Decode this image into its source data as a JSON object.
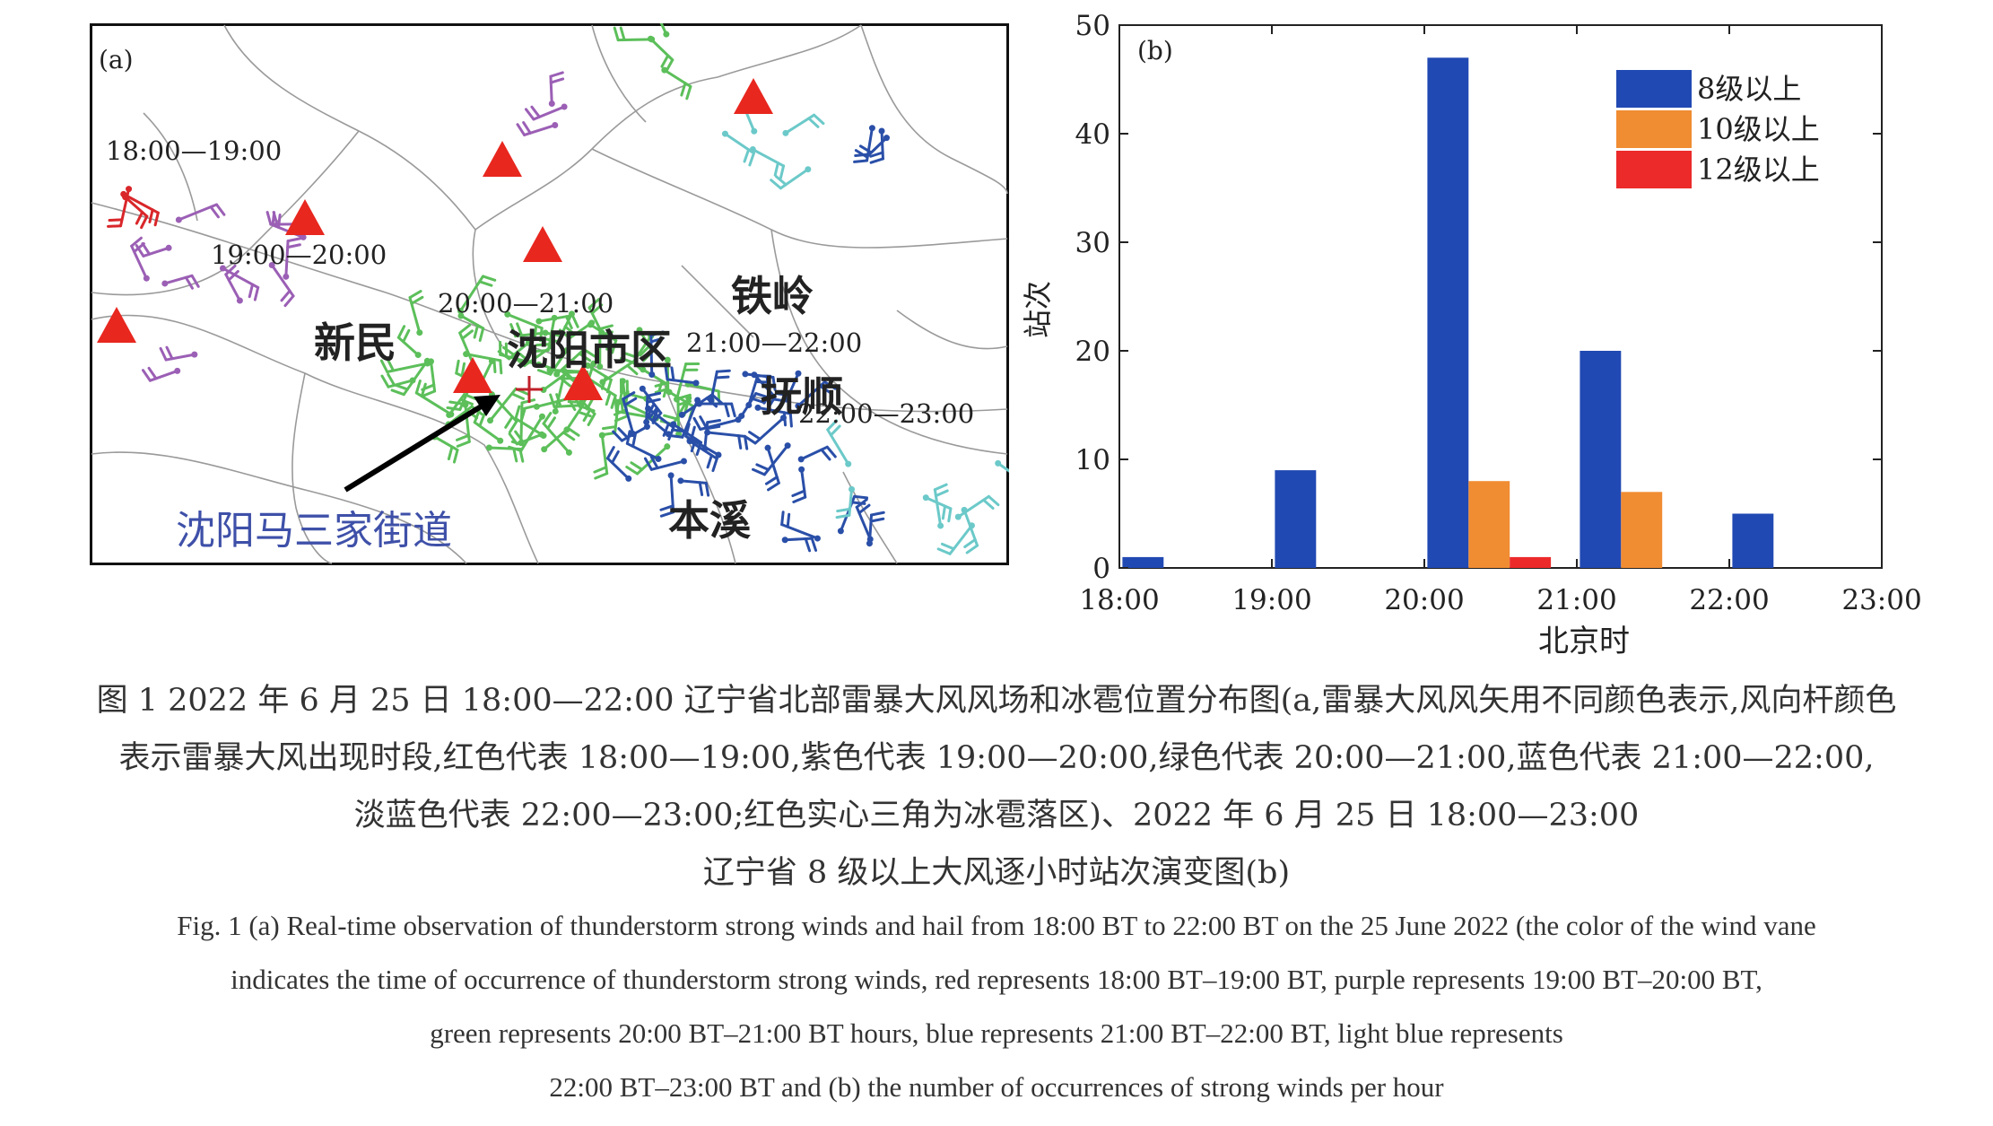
{
  "panel_a": {
    "label": "(a)",
    "periods": [
      "18:00—19:00",
      "19:00—20:00",
      "20:00—21:00",
      "21:00—22:00",
      "22:00—23:00"
    ],
    "places": [
      "新民",
      "铁岭",
      "沈阳市区",
      "抚顺",
      "本溪"
    ],
    "annotation": "沈阳马三家街道",
    "colors": {
      "red": "#d9262a",
      "purple": "#9b5fb5",
      "green": "#5cbf5a",
      "blue": "#2a4fa8",
      "lightblue": "#6cc9c9",
      "hail": "#e8271f"
    }
  },
  "chart_data": {
    "type": "bar",
    "label": "(b)",
    "xlabel": "北京时",
    "ylabel": "站次",
    "xlim": [
      18,
      23
    ],
    "ylim": [
      0,
      50
    ],
    "xticks": [
      "18:00",
      "19:00",
      "20:00",
      "21:00",
      "22:00",
      "23:00"
    ],
    "yticks": [
      0,
      10,
      20,
      30,
      40,
      50
    ],
    "categories": [
      "18:00",
      "19:00",
      "20:00",
      "21:00",
      "22:00"
    ],
    "series": [
      {
        "name": "8级以上",
        "color": "#2149b3",
        "values": [
          1,
          9,
          47,
          20,
          5
        ]
      },
      {
        "name": "10级以上",
        "color": "#f08c32",
        "values": [
          0,
          0,
          8,
          7,
          0
        ]
      },
      {
        "name": "12级以上",
        "color": "#ec2a2a",
        "values": [
          0,
          0,
          1,
          0,
          0
        ]
      }
    ],
    "legend_position": "top-right"
  },
  "caption": {
    "cn_line1": "图 1 2022 年 6 月 25 日 18:00—22:00 辽宁省北部雷暴大风风场和冰雹位置分布图(a,雷暴大风风矢用不同颜色表示,风向杆颜色",
    "cn_line2": "表示雷暴大风出现时段,红色代表 18:00—19:00,紫色代表 19:00—20:00,绿色代表 20:00—21:00,蓝色代表 21:00—22:00,",
    "cn_line3": "淡蓝色代表 22:00—23:00;红色实心三角为冰雹落区)、2022 年 6 月 25 日 18:00—23:00",
    "cn_line4": "辽宁省 8 级以上大风逐小时站次演变图(b)",
    "en_line1": "Fig. 1 (a) Real-time observation of thunderstorm strong winds and hail from 18:00 BT to 22:00 BT on the 25 June 2022 (the color of the wind vane",
    "en_line2": "indicates the time of occurrence of thunderstorm strong winds, red represents 18:00 BT–19:00 BT, purple represents 19:00 BT–20:00 BT,",
    "en_line3": "green represents 20:00 BT–21:00 BT hours, blue represents 21:00 BT–22:00 BT, light blue represents",
    "en_line4": "22:00 BT–23:00 BT and (b) the number of occurrences of strong winds per hour"
  }
}
